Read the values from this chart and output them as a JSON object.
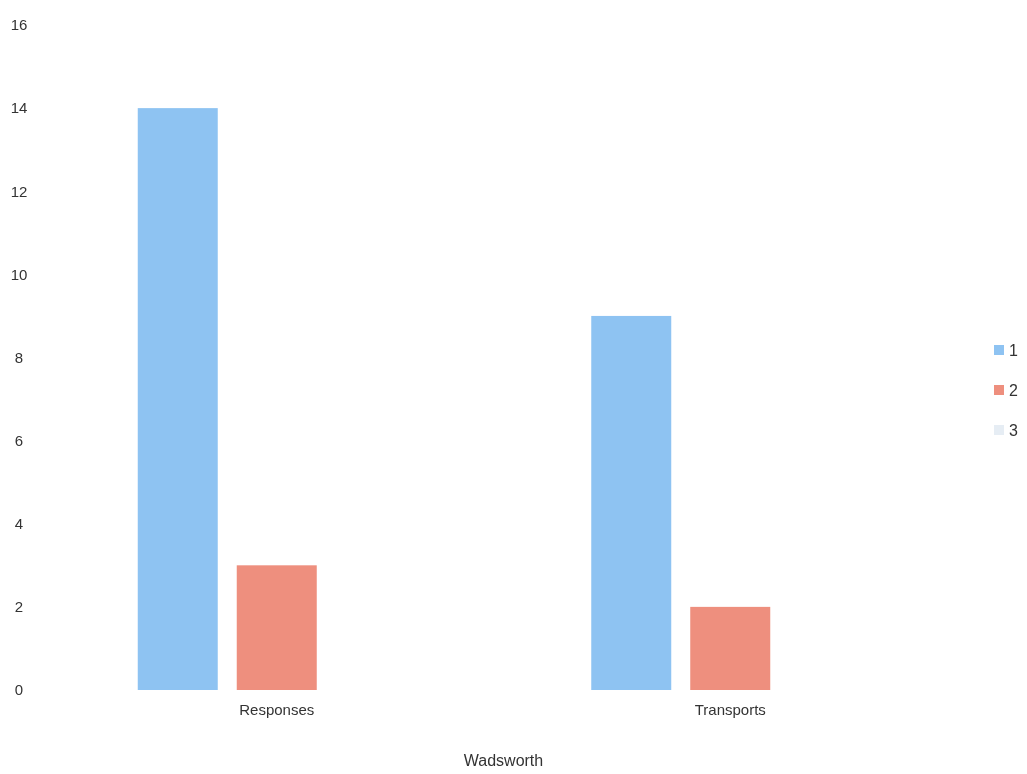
{
  "chart_data": {
    "type": "bar",
    "xlabel": "Wadsworth",
    "categories": [
      "Responses",
      "Transports"
    ],
    "series": [
      {
        "name": "1",
        "color": "#8ec3f2",
        "values": [
          14,
          9
        ]
      },
      {
        "name": "2",
        "color": "#ee8f7e",
        "values": [
          3,
          2
        ]
      },
      {
        "name": "3",
        "color": "#e6edf4",
        "values": [
          0,
          0
        ]
      }
    ],
    "ylim": [
      0,
      16
    ],
    "yticks": [
      0,
      2,
      4,
      6,
      8,
      10,
      12,
      14,
      16
    ],
    "grid": false,
    "legend": "right"
  }
}
